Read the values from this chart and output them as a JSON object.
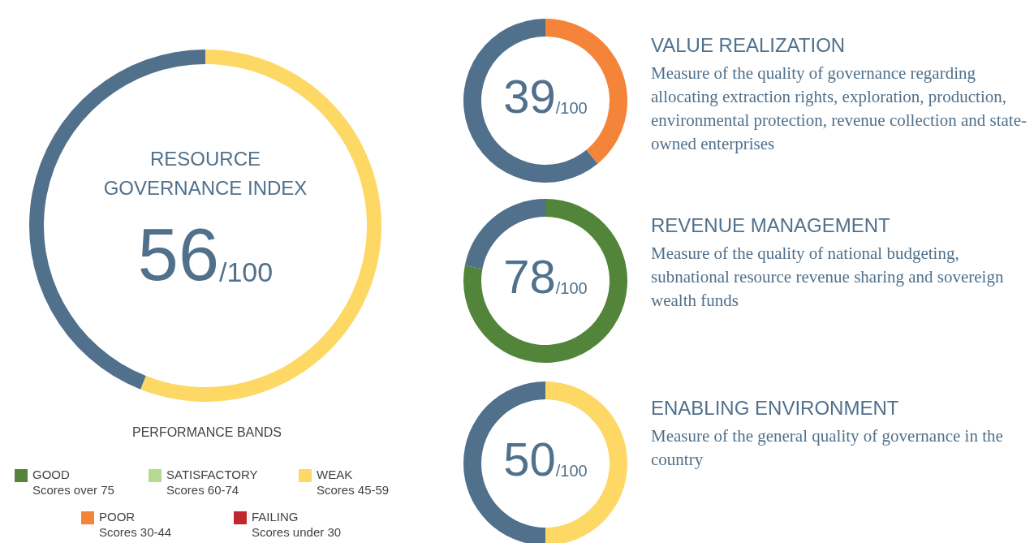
{
  "chart_data": [
    {
      "type": "donut",
      "title": "RESOURCE GOVERNANCE INDEX",
      "categories": [
        null,
        null
      ],
      "values": [
        56,
        44
      ],
      "colors": [
        "#fdd865",
        "#50708b"
      ],
      "value_labels": [
        "56/100",
        null
      ]
    },
    {
      "type": "donut",
      "title": "VALUE REALIZATION",
      "subtitle": "Measure of the quality of governance regarding allocating extraction rights, exploration, production, environmental protection, revenue collection and state-owned enterprises",
      "categories": [
        null,
        null
      ],
      "values": [
        39,
        61
      ],
      "colors": [
        "#f3843a",
        "#50708b"
      ],
      "value_labels": [
        "39/100",
        null
      ]
    },
    {
      "type": "donut",
      "title": "REVENUE MANAGEMENT",
      "subtitle": "Measure of the quality of national budgeting, subnational resource revenue sharing and sovereign wealth funds",
      "categories": [
        null,
        null
      ],
      "values": [
        78,
        22
      ],
      "colors": [
        "#52843a",
        "#50708b"
      ],
      "value_labels": [
        "78/100",
        null
      ]
    },
    {
      "type": "donut",
      "title": "ENABLING ENVIRONMENT",
      "subtitle": "Measure of the general quality of governance in the country",
      "categories": [
        null,
        null
      ],
      "values": [
        50,
        50
      ],
      "colors": [
        "#fdd865",
        "#50708b"
      ],
      "value_labels": [
        "50/100",
        null
      ]
    },
    {
      "type": "other",
      "title": "PERFORMANCE BANDS",
      "categories": [
        "GOOD",
        "SATISFACTORY",
        "WEAK",
        "POOR",
        "FAILING"
      ],
      "annotations": [
        "Scores over 75",
        "Scores 60-74",
        "Scores 45-59",
        "Scores 30-44",
        "Scores under 30"
      ],
      "colors": [
        "#52843a",
        "#b5d98f",
        "#fdd865",
        "#f3843a",
        "#c1272d"
      ]
    }
  ]
}
